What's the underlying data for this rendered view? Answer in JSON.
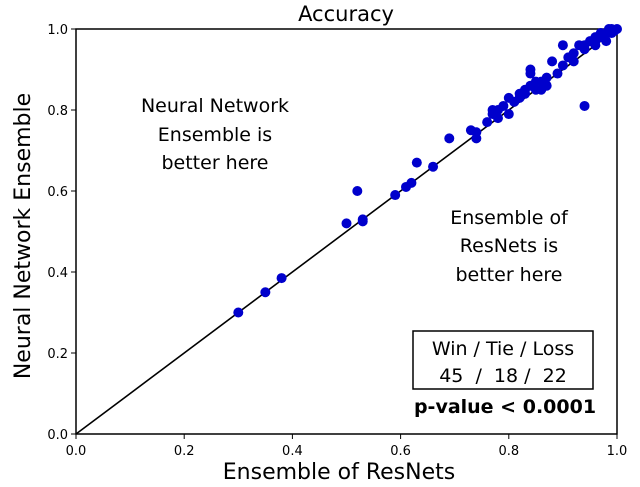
{
  "chart_data": {
    "type": "scatter",
    "title": "Accuracy",
    "xlabel": "Ensemble of ResNets",
    "ylabel": "Neural Network Ensemble",
    "xlim": [
      0.0,
      1.0
    ],
    "ylim": [
      0.0,
      1.0
    ],
    "xticks": [
      "0.0",
      "0.2",
      "0.4",
      "0.6",
      "0.8",
      "1.0"
    ],
    "yticks": [
      "0.0",
      "0.2",
      "0.4",
      "0.6",
      "0.8",
      "1.0"
    ],
    "grid": false,
    "reference_line": [
      [
        0,
        0
      ],
      [
        1,
        1
      ]
    ],
    "point_color": "#0000cc",
    "annotations": {
      "upper_left": [
        "Neural Network",
        "Ensemble is",
        "better here"
      ],
      "lower_right": [
        "Ensemble of",
        "ResNets is",
        "better here"
      ],
      "stats_header": "Win / Tie / Loss",
      "stats_values": "45  /  18 /  22",
      "p_value": "p-value < 0.0001"
    },
    "points": [
      [
        0.3,
        0.3
      ],
      [
        0.35,
        0.35
      ],
      [
        0.38,
        0.385
      ],
      [
        0.5,
        0.52
      ],
      [
        0.52,
        0.6
      ],
      [
        0.53,
        0.53
      ],
      [
        0.53,
        0.525
      ],
      [
        0.59,
        0.59
      ],
      [
        0.61,
        0.61
      ],
      [
        0.62,
        0.62
      ],
      [
        0.63,
        0.67
      ],
      [
        0.66,
        0.66
      ],
      [
        0.69,
        0.73
      ],
      [
        0.73,
        0.75
      ],
      [
        0.74,
        0.73
      ],
      [
        0.74,
        0.745
      ],
      [
        0.76,
        0.77
      ],
      [
        0.77,
        0.79
      ],
      [
        0.77,
        0.8
      ],
      [
        0.78,
        0.78
      ],
      [
        0.78,
        0.8
      ],
      [
        0.79,
        0.81
      ],
      [
        0.8,
        0.83
      ],
      [
        0.8,
        0.79
      ],
      [
        0.81,
        0.82
      ],
      [
        0.82,
        0.84
      ],
      [
        0.82,
        0.83
      ],
      [
        0.83,
        0.85
      ],
      [
        0.83,
        0.84
      ],
      [
        0.84,
        0.9
      ],
      [
        0.84,
        0.89
      ],
      [
        0.84,
        0.86
      ],
      [
        0.85,
        0.87
      ],
      [
        0.85,
        0.85
      ],
      [
        0.86,
        0.85
      ],
      [
        0.86,
        0.87
      ],
      [
        0.87,
        0.86
      ],
      [
        0.87,
        0.88
      ],
      [
        0.88,
        0.92
      ],
      [
        0.89,
        0.89
      ],
      [
        0.9,
        0.91
      ],
      [
        0.9,
        0.96
      ],
      [
        0.91,
        0.93
      ],
      [
        0.92,
        0.92
      ],
      [
        0.92,
        0.94
      ],
      [
        0.93,
        0.96
      ],
      [
        0.94,
        0.96
      ],
      [
        0.94,
        0.95
      ],
      [
        0.94,
        0.81
      ],
      [
        0.95,
        0.97
      ],
      [
        0.96,
        0.97
      ],
      [
        0.96,
        0.98
      ],
      [
        0.96,
        0.96
      ],
      [
        0.97,
        0.98
      ],
      [
        0.97,
        0.99
      ],
      [
        0.98,
        0.99
      ],
      [
        0.98,
        0.97
      ],
      [
        0.99,
        1.0
      ],
      [
        0.99,
        0.99
      ],
      [
        1.0,
        1.0
      ],
      [
        0.995,
        0.995
      ],
      [
        0.985,
        1.0
      ]
    ]
  }
}
